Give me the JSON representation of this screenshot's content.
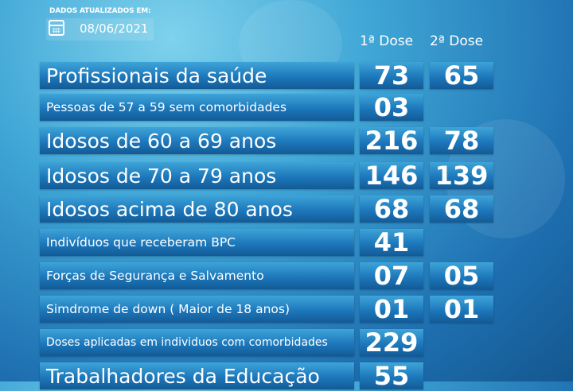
{
  "updated_label": "DADOS ATUALIZADOS EM:",
  "date": "08/06/2021",
  "icons": {
    "date": "calendar-icon"
  },
  "colors": {
    "bar": "#1d78bb",
    "background": "#3fa6d6"
  },
  "columns": {
    "first": "1ª Dose",
    "second": "2ª Dose"
  },
  "rows": [
    {
      "label": "Profissionais da saúde",
      "first": "73",
      "second": "65"
    },
    {
      "label": "Pessoas de 57 a 59 sem comorbidades",
      "first": "03",
      "second": ""
    },
    {
      "label": "Idosos de 60 a 69 anos",
      "first": "216",
      "second": "78"
    },
    {
      "label": "Idosos de 70 a 79 anos",
      "first": "146",
      "second": "139"
    },
    {
      "label": "Idosos acima de  80 anos",
      "first": "68",
      "second": "68"
    },
    {
      "label": "Indivíduos que receberam BPC",
      "first": "41",
      "second": ""
    },
    {
      "label": "Forças de Segurança e Salvamento",
      "first": "07",
      "second": "05"
    },
    {
      "label": "Simdrome de down ( Maior de 18 anos)",
      "first": "01",
      "second": "01"
    },
    {
      "label": "Doses aplicadas em individuos com comorbidades",
      "first": "229",
      "second": ""
    },
    {
      "label": "Trabalhadores da Educação",
      "first": "55",
      "second": ""
    }
  ]
}
